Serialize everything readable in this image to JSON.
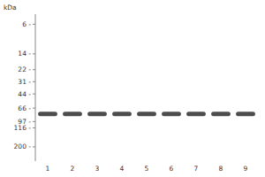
{
  "chart_data": {
    "type": "band",
    "y_label": "kDa",
    "categories": [
      "1",
      "2",
      "3",
      "4",
      "5",
      "6",
      "7",
      "8",
      "9"
    ],
    "values": [
      78,
      78,
      78,
      78,
      78,
      78,
      78,
      78,
      78
    ],
    "color": "#3a3a3a",
    "log": "y",
    "ylim": [
      300,
      4.5
    ],
    "yticks": [
      {
        "value": 200,
        "label": "200 -"
      },
      {
        "value": 116,
        "label": "116 -"
      },
      {
        "value": 97,
        "label": "97 -"
      },
      {
        "value": 66,
        "label": "66 -"
      },
      {
        "value": 44,
        "label": "44 -"
      },
      {
        "value": 31,
        "label": "31 -"
      },
      {
        "value": 22,
        "label": "22 -"
      },
      {
        "value": 14,
        "label": "14 -"
      },
      {
        "value": 6,
        "label": "6 -"
      }
    ],
    "grid": false
  }
}
